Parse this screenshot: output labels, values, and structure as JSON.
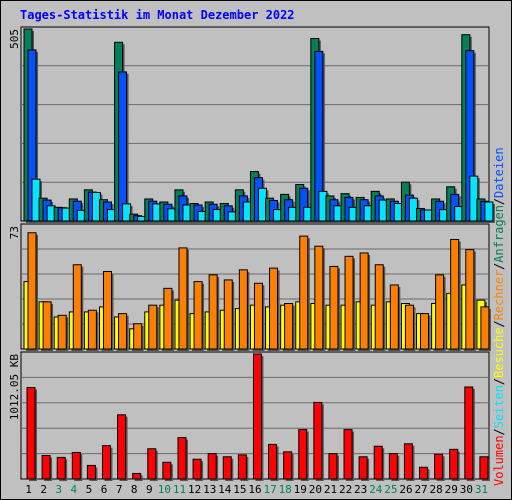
{
  "title": "Tages-Statistik im Monat Dezember 2022",
  "colors": {
    "background": "#c0c0c0",
    "title": "#0000ff",
    "anfragen": "#007f58",
    "dateien": "#0051ff",
    "seiten": "#00e4ff",
    "besuche": "#ffff00",
    "rechner": "#ff8000",
    "volumen": "#ff0000",
    "weekend_label": "#00805c"
  },
  "legend": {
    "panel1": [
      {
        "text": "Anfragen",
        "color": "#007f58"
      },
      {
        "text": "Dateien",
        "color": "#0051ff"
      }
    ],
    "panel2": [
      {
        "text": "Seiten",
        "color": "#00e4ff"
      },
      {
        "text": "Besuche",
        "color": "#ffff00"
      },
      {
        "text": "Rechner",
        "color": "#ff8000"
      }
    ],
    "panel3": [
      {
        "text": "Volumen",
        "color": "#ff0000"
      }
    ],
    "separator": "/"
  },
  "chart_data": {
    "type": "bar",
    "categories": [
      "1",
      "2",
      "3",
      "4",
      "5",
      "6",
      "7",
      "8",
      "9",
      "10",
      "11",
      "12",
      "13",
      "14",
      "15",
      "16",
      "17",
      "18",
      "19",
      "20",
      "21",
      "22",
      "23",
      "24",
      "25",
      "26",
      "27",
      "28",
      "29",
      "30",
      "31"
    ],
    "weekend_days": [
      "3",
      "4",
      "10",
      "11",
      "17",
      "18",
      "24",
      "25",
      "31"
    ],
    "panels": [
      {
        "name": "requests",
        "max_label": "505",
        "ylim": [
          0,
          505
        ],
        "series": [
          {
            "name": "Anfragen",
            "values": [
              505,
              60,
              36,
              58,
              82,
              56,
              470,
              18,
              58,
              50,
              82,
              46,
              50,
              46,
              82,
              130,
              60,
              70,
              96,
              480,
              66,
              72,
              62,
              78,
              58,
              102,
              33,
              58,
              90,
              490,
              58
            ]
          },
          {
            "name": "Dateien",
            "values": [
              450,
              55,
              35,
              52,
              76,
              50,
              392,
              14,
              52,
              44,
              66,
              42,
              44,
              40,
              66,
              114,
              54,
              56,
              86,
              446,
              56,
              62,
              56,
              66,
              52,
              68,
              29,
              52,
              70,
              448,
              52
            ]
          },
          {
            "name": "Seiten",
            "values": [
              110,
              40,
              34,
              28,
              75,
              30,
              45,
              12,
              45,
              32,
              42,
              25,
              30,
              24,
              50,
              86,
              30,
              36,
              36,
              78,
              40,
              36,
              40,
              55,
              46,
              60,
              29,
              30,
              38,
              118,
              50
            ]
          }
        ]
      },
      {
        "name": "visits",
        "max_label": "73",
        "ylim": [
          0,
          73
        ],
        "series": [
          {
            "name": "Besuche",
            "values": [
              40,
              28,
              19,
              22,
              22,
              25,
              19,
              12,
              22,
              26,
              29,
              21,
              22,
              23,
              24,
              26,
              25,
              26,
              28,
              27,
              26,
              26,
              28,
              26,
              28,
              27,
              21,
              27,
              33,
              38,
              29
            ]
          },
          {
            "name": "Rechner",
            "values": [
              69,
              28,
              20,
              50,
              23,
              46,
              21,
              15,
              26,
              36,
              60,
              40,
              44,
              41,
              47,
              39,
              48,
              27,
              67,
              61,
              49,
              55,
              57,
              50,
              38,
              26,
              21,
              44,
              65,
              59,
              25
            ]
          }
        ]
      },
      {
        "name": "traffic",
        "max_label": "1012.05 KB",
        "ylim": [
          0,
          1012.05
        ],
        "series": [
          {
            "name": "Volumen",
            "values": [
              740,
              190,
              175,
              215,
              110,
              270,
              520,
              45,
              245,
              135,
              335,
              160,
              205,
              180,
              195,
              1012,
              280,
              220,
              400,
              620,
              205,
              400,
              180,
              265,
              205,
              285,
              95,
              200,
              240,
              745,
              180
            ]
          }
        ]
      }
    ]
  }
}
